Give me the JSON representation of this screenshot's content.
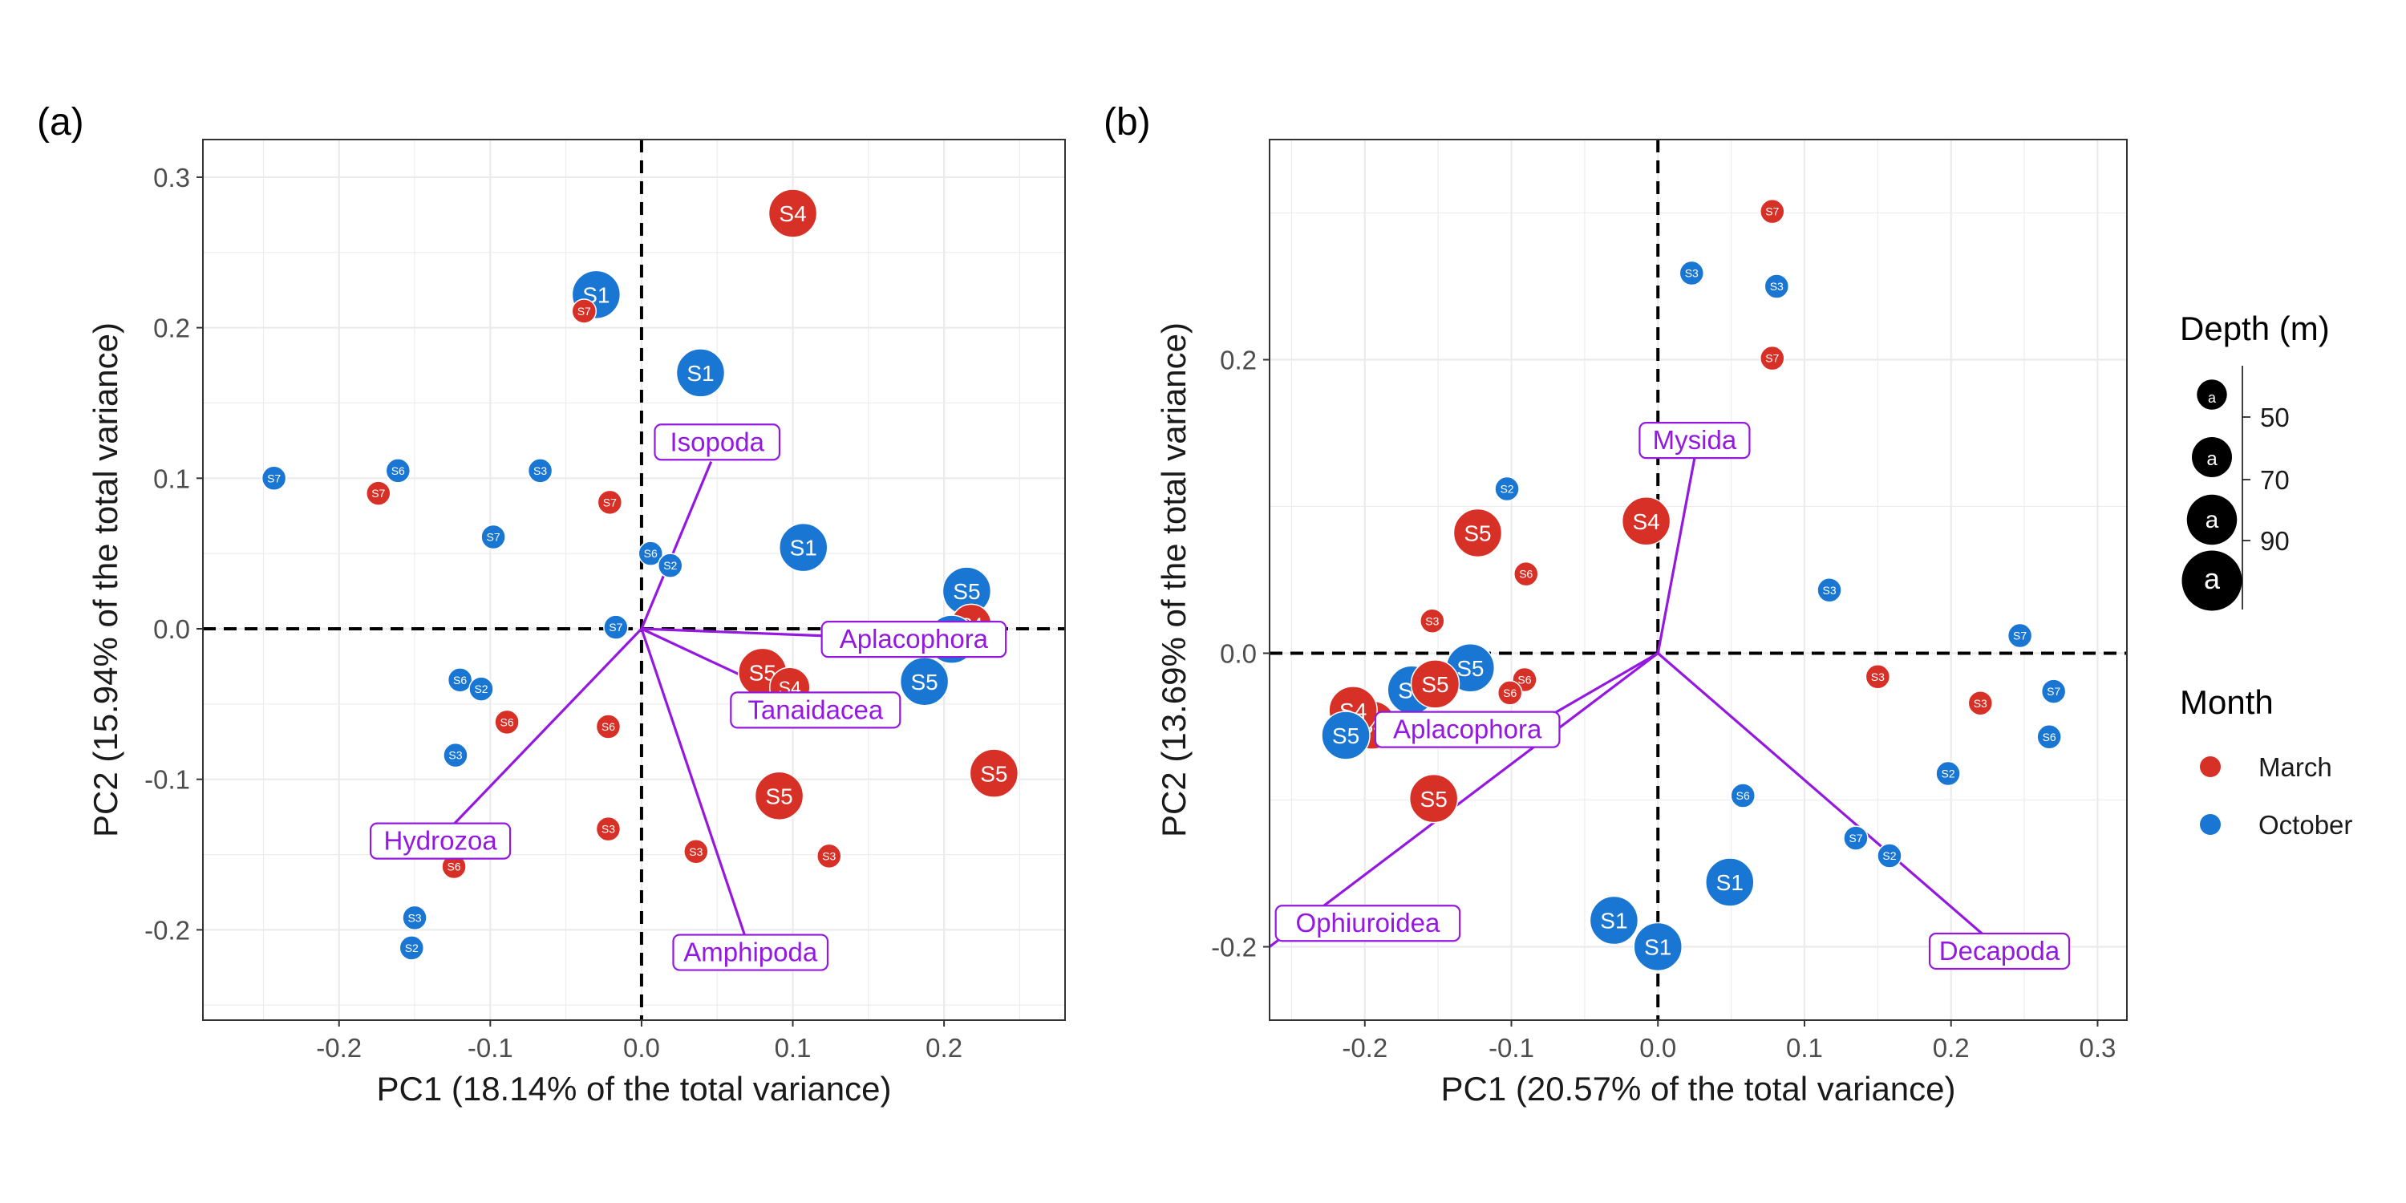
{
  "colors": {
    "March": "#d73027",
    "October": "#1976d2",
    "loading": "#9418e0"
  },
  "legend": {
    "depth_title": "Depth (m)",
    "depth_key_glyph": "a",
    "depth_labels": [
      "50",
      "70",
      "90"
    ],
    "depth_values": [
      40,
      60,
      80,
      100
    ],
    "month_title": "Month",
    "months": [
      "March",
      "October"
    ]
  },
  "chart_data": [
    {
      "type": "scatter",
      "panel_label": "(a)",
      "xlabel": "PC1 (18.14% of the total variance)",
      "ylabel": "PC2 (15.94% of the total variance)",
      "xlim": [
        -0.29,
        0.28
      ],
      "ylim": [
        -0.26,
        0.325
      ],
      "xticks": [
        -0.2,
        -0.1,
        0.0,
        0.1,
        0.2
      ],
      "xtick_labels": [
        "-0.2",
        "-0.1",
        "0.0",
        "0.1",
        "0.2"
      ],
      "yticks": [
        -0.2,
        -0.1,
        0.0,
        0.1,
        0.2,
        0.3
      ],
      "ytick_labels": [
        "-0.2",
        "-0.1",
        "0.0",
        "0.1",
        "0.2",
        "0.3"
      ],
      "grid": true,
      "points": [
        {
          "label": "S4",
          "month": "March",
          "depth": 100,
          "x": 0.1,
          "y": 0.276
        },
        {
          "label": "S1",
          "month": "October",
          "depth": 100,
          "x": -0.03,
          "y": 0.222
        },
        {
          "label": "S7",
          "month": "March",
          "depth": 40,
          "x": -0.038,
          "y": 0.211
        },
        {
          "label": "S1",
          "month": "October",
          "depth": 100,
          "x": 0.039,
          "y": 0.17
        },
        {
          "label": "S7",
          "month": "October",
          "depth": 40,
          "x": -0.243,
          "y": 0.1
        },
        {
          "label": "S6",
          "month": "October",
          "depth": 40,
          "x": -0.161,
          "y": 0.105
        },
        {
          "label": "S7",
          "month": "March",
          "depth": 40,
          "x": -0.174,
          "y": 0.09
        },
        {
          "label": "S3",
          "month": "October",
          "depth": 40,
          "x": -0.067,
          "y": 0.105
        },
        {
          "label": "S7",
          "month": "March",
          "depth": 40,
          "x": -0.021,
          "y": 0.084
        },
        {
          "label": "S7",
          "month": "October",
          "depth": 40,
          "x": -0.098,
          "y": 0.061
        },
        {
          "label": "S6",
          "month": "October",
          "depth": 40,
          "x": 0.006,
          "y": 0.05
        },
        {
          "label": "S2",
          "month": "October",
          "depth": 40,
          "x": 0.019,
          "y": 0.042
        },
        {
          "label": "S1",
          "month": "October",
          "depth": 100,
          "x": 0.107,
          "y": 0.054
        },
        {
          "label": "S7",
          "month": "October",
          "depth": 40,
          "x": -0.017,
          "y": 0.001
        },
        {
          "label": "S5",
          "month": "October",
          "depth": 100,
          "x": 0.215,
          "y": 0.025
        },
        {
          "label": "S4",
          "month": "March",
          "depth": 80,
          "x": 0.218,
          "y": 0.003
        },
        {
          "label": "S5",
          "month": "October",
          "depth": 100,
          "x": 0.205,
          "y": -0.007
        },
        {
          "label": "S5",
          "month": "October",
          "depth": 100,
          "x": 0.187,
          "y": -0.035
        },
        {
          "label": "S5",
          "month": "March",
          "depth": 100,
          "x": 0.08,
          "y": -0.029
        },
        {
          "label": "S4",
          "month": "March",
          "depth": 80,
          "x": 0.098,
          "y": -0.039
        },
        {
          "label": "S6",
          "month": "October",
          "depth": 40,
          "x": -0.12,
          "y": -0.034
        },
        {
          "label": "S2",
          "month": "October",
          "depth": 40,
          "x": -0.106,
          "y": -0.04
        },
        {
          "label": "S6",
          "month": "March",
          "depth": 40,
          "x": -0.089,
          "y": -0.062
        },
        {
          "label": "S6",
          "month": "March",
          "depth": 40,
          "x": -0.022,
          "y": -0.065
        },
        {
          "label": "S3",
          "month": "October",
          "depth": 40,
          "x": -0.123,
          "y": -0.084
        },
        {
          "label": "S5",
          "month": "March",
          "depth": 100,
          "x": 0.091,
          "y": -0.111
        },
        {
          "label": "S5",
          "month": "March",
          "depth": 100,
          "x": 0.233,
          "y": -0.096
        },
        {
          "label": "S3",
          "month": "March",
          "depth": 40,
          "x": -0.022,
          "y": -0.133
        },
        {
          "label": "S3",
          "month": "March",
          "depth": 40,
          "x": 0.036,
          "y": -0.148
        },
        {
          "label": "S3",
          "month": "March",
          "depth": 40,
          "x": 0.124,
          "y": -0.151
        },
        {
          "label": "S6",
          "month": "March",
          "depth": 40,
          "x": -0.124,
          "y": -0.158
        },
        {
          "label": "S3",
          "month": "October",
          "depth": 40,
          "x": -0.15,
          "y": -0.192
        },
        {
          "label": "S2",
          "month": "October",
          "depth": 40,
          "x": -0.152,
          "y": -0.212
        }
      ],
      "loadings": [
        {
          "name": "Isopoda",
          "x": 0.046,
          "y": 0.111,
          "label_x": 0.05,
          "label_y": 0.124
        },
        {
          "name": "Aplacophora",
          "x": 0.18,
          "y": -0.007,
          "label_x": 0.18,
          "label_y": -0.007
        },
        {
          "name": "Tanaidacea",
          "x": 0.115,
          "y": -0.054,
          "label_x": 0.115,
          "label_y": -0.054
        },
        {
          "name": "Amphipoda",
          "x": 0.068,
          "y": -0.203,
          "label_x": 0.072,
          "label_y": -0.215
        },
        {
          "name": "Hydrozoa",
          "x": -0.13,
          "y": -0.136,
          "label_x": -0.133,
          "label_y": -0.141
        }
      ]
    },
    {
      "type": "scatter",
      "panel_label": "(b)",
      "xlabel": "PC1 (20.57% of the total variance)",
      "ylabel": "PC2 (13.69% of the total variance)",
      "xlim": [
        -0.265,
        0.32
      ],
      "ylim": [
        -0.25,
        0.35
      ],
      "xticks": [
        -0.2,
        -0.1,
        0.0,
        0.1,
        0.2,
        0.3
      ],
      "xtick_labels": [
        "-0.2",
        "-0.1",
        "0.0",
        "0.1",
        "0.2",
        "0.3"
      ],
      "yticks": [
        -0.2,
        0.0,
        0.2
      ],
      "ytick_labels": [
        "-0.2",
        "0.0",
        "0.2"
      ],
      "grid": true,
      "points": [
        {
          "label": "S7",
          "month": "March",
          "depth": 40,
          "x": 0.078,
          "y": 0.301
        },
        {
          "label": "S3",
          "month": "October",
          "depth": 40,
          "x": 0.023,
          "y": 0.259
        },
        {
          "label": "S3",
          "month": "October",
          "depth": 40,
          "x": 0.081,
          "y": 0.25
        },
        {
          "label": "S7",
          "month": "March",
          "depth": 40,
          "x": 0.078,
          "y": 0.201
        },
        {
          "label": "S2",
          "month": "October",
          "depth": 40,
          "x": -0.103,
          "y": 0.112
        },
        {
          "label": "S4",
          "month": "March",
          "depth": 100,
          "x": -0.008,
          "y": 0.09
        },
        {
          "label": "S5",
          "month": "March",
          "depth": 100,
          "x": -0.123,
          "y": 0.082
        },
        {
          "label": "S6",
          "month": "March",
          "depth": 40,
          "x": -0.09,
          "y": 0.054
        },
        {
          "label": "S3",
          "month": "October",
          "depth": 40,
          "x": 0.117,
          "y": 0.043
        },
        {
          "label": "S3",
          "month": "March",
          "depth": 40,
          "x": -0.154,
          "y": 0.022
        },
        {
          "label": "S7",
          "month": "October",
          "depth": 40,
          "x": 0.247,
          "y": 0.012
        },
        {
          "label": "S3",
          "month": "March",
          "depth": 40,
          "x": 0.15,
          "y": -0.016
        },
        {
          "label": "S6",
          "month": "March",
          "depth": 40,
          "x": -0.091,
          "y": -0.018
        },
        {
          "label": "S6",
          "month": "March",
          "depth": 40,
          "x": -0.101,
          "y": -0.027
        },
        {
          "label": "S7",
          "month": "October",
          "depth": 40,
          "x": 0.27,
          "y": -0.026
        },
        {
          "label": "S3",
          "month": "March",
          "depth": 40,
          "x": 0.22,
          "y": -0.034
        },
        {
          "label": "S5",
          "month": "October",
          "depth": 100,
          "x": -0.128,
          "y": -0.01
        },
        {
          "label": "S5",
          "month": "October",
          "depth": 100,
          "x": -0.168,
          "y": -0.025
        },
        {
          "label": "S5",
          "month": "March",
          "depth": 100,
          "x": -0.152,
          "y": -0.021
        },
        {
          "label": "S4",
          "month": "March",
          "depth": 100,
          "x": -0.195,
          "y": -0.049
        },
        {
          "label": "S4",
          "month": "March",
          "depth": 100,
          "x": -0.208,
          "y": -0.039
        },
        {
          "label": "S5",
          "month": "October",
          "depth": 100,
          "x": -0.213,
          "y": -0.056
        },
        {
          "label": "S6",
          "month": "October",
          "depth": 40,
          "x": -0.083,
          "y": -0.052
        },
        {
          "label": "S6",
          "month": "October",
          "depth": 40,
          "x": 0.267,
          "y": -0.057
        },
        {
          "label": "S2",
          "month": "October",
          "depth": 40,
          "x": 0.198,
          "y": -0.082
        },
        {
          "label": "S6",
          "month": "October",
          "depth": 40,
          "x": 0.058,
          "y": -0.097
        },
        {
          "label": "S5",
          "month": "March",
          "depth": 100,
          "x": -0.153,
          "y": -0.099
        },
        {
          "label": "S7",
          "month": "October",
          "depth": 40,
          "x": 0.135,
          "y": -0.126
        },
        {
          "label": "S2",
          "month": "October",
          "depth": 40,
          "x": 0.158,
          "y": -0.138
        },
        {
          "label": "S1",
          "month": "October",
          "depth": 100,
          "x": 0.049,
          "y": -0.156
        },
        {
          "label": "S1",
          "month": "October",
          "depth": 100,
          "x": -0.03,
          "y": -0.182
        },
        {
          "label": "S1",
          "month": "October",
          "depth": 100,
          "x": 0.0,
          "y": -0.2
        }
      ],
      "loadings": [
        {
          "name": "Mysida",
          "x": 0.025,
          "y": 0.133,
          "label_x": 0.025,
          "label_y": 0.145
        },
        {
          "name": "Aplacophora",
          "x": -0.09,
          "y": -0.052,
          "label_x": -0.13,
          "label_y": -0.052
        },
        {
          "name": "Ophiuroidea",
          "x": -0.265,
          "y": -0.2,
          "label_x": -0.198,
          "label_y": -0.184
        },
        {
          "name": "Decapoda",
          "x": 0.235,
          "y": -0.203,
          "label_x": 0.233,
          "label_y": -0.203
        }
      ]
    }
  ]
}
